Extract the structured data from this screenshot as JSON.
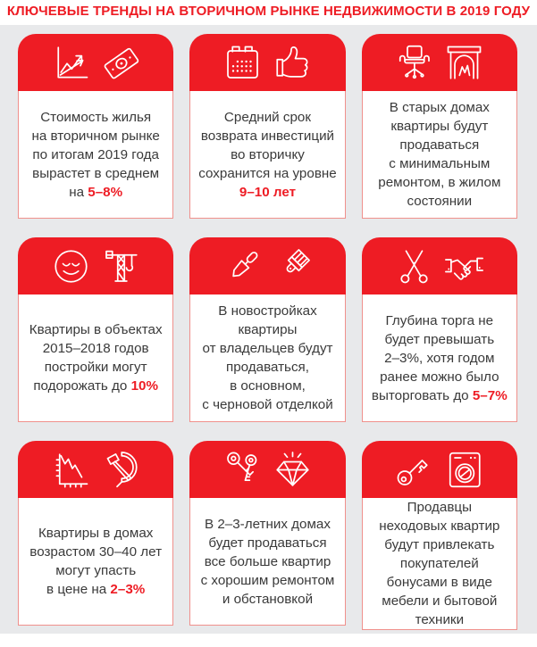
{
  "page": {
    "title": "КЛЮЧЕВЫЕ ТРЕНДЫ НА ВТОРИЧНОМ РЫНКЕ НЕДВИЖИМОСТИ В 2019 ГОДУ"
  },
  "colors": {
    "accent_red": "#ee1c24",
    "panel_gray": "#e8e9eb",
    "card_border": "#f0908c",
    "text": "#3a3a3a"
  },
  "cards": [
    {
      "icons": [
        "growth-chart-icon",
        "banknote-icon"
      ],
      "segments": [
        {
          "text": "Стоимость жилья\nна вторичном рынке\nпо итогам 2019 года\nвырастет в среднем\nна ",
          "highlight": false
        },
        {
          "text": "5–8%",
          "highlight": true
        }
      ]
    },
    {
      "icons": [
        "calendar-icon",
        "thumbs-up-icon"
      ],
      "segments": [
        {
          "text": "Средний срок\nвозврата инвестиций\nво вторичку\nсохранится на уровне\n",
          "highlight": false
        },
        {
          "text": "9–10 лет",
          "highlight": true
        }
      ]
    },
    {
      "icons": [
        "office-chair-icon",
        "fireplace-icon"
      ],
      "segments": [
        {
          "text": "В старых домах\nквартиры будут\nпродаваться\nс минимальным\nремонтом, в жилом\nсостоянии",
          "highlight": false
        }
      ]
    },
    {
      "icons": [
        "smiley-face-icon",
        "construction-crane-icon"
      ],
      "segments": [
        {
          "text": "Квартиры в объектах\n2015–2018 годов\nпостройки могут\nподорожать до ",
          "highlight": false
        },
        {
          "text": "10%",
          "highlight": true
        }
      ]
    },
    {
      "icons": [
        "trowel-icon",
        "paintbrush-icon"
      ],
      "segments": [
        {
          "text": "В новостройках\nквартиры\nот владельцев будут\nпродаваться,\nв основном,\nс черновой отделкой",
          "highlight": false
        }
      ]
    },
    {
      "icons": [
        "scissors-icon",
        "handshake-icon"
      ],
      "segments": [
        {
          "text": "Глубина торга не\nбудет превышать\n2–3%, хотя годом\nранее можно было\nвыторговать до ",
          "highlight": false
        },
        {
          "text": "5–7%",
          "highlight": true
        }
      ]
    },
    {
      "icons": [
        "declining-chart-icon",
        "hammer-and-sickle-icon"
      ],
      "segments": [
        {
          "text": "Квартиры в домах\nвозрастом 30–40 лет\nмогут упасть\nв цене на ",
          "highlight": false
        },
        {
          "text": "2–3%",
          "highlight": true
        }
      ]
    },
    {
      "icons": [
        "keys-icon",
        "diamond-icon"
      ],
      "segments": [
        {
          "text": "В 2–3-летних домах\nбудет продаваться\nвсе больше квартир\nс хорошим ремонтом\nи обстановкой",
          "highlight": false
        }
      ]
    },
    {
      "icons": [
        "key-icon",
        "washing-machine-icon"
      ],
      "segments": [
        {
          "text": "Продавцы\nнеходовых квартир\nбудут привлекать\nпокупателей\nбонусами в виде\nмебели и бытовой\nтехники",
          "highlight": false
        }
      ]
    }
  ]
}
